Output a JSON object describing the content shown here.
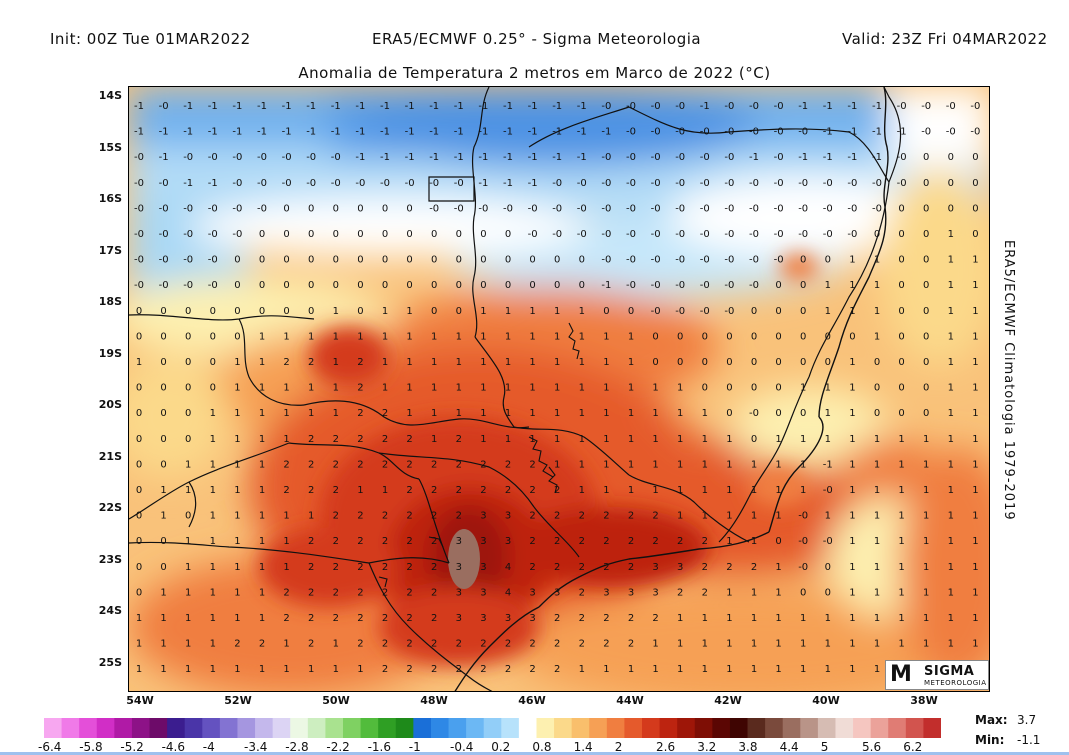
{
  "header": {
    "init": "Init: 00Z Tue 01MAR2022",
    "model": "ERA5/ECMWF 0.25° - Sigma Meteorologia",
    "valid": "Valid: 23Z Fri 04MAR2022"
  },
  "title": "Anomalia de Temperatura 2 metros em Marco de 2022 (°C)",
  "side_label": "ERA5/ECMWF Climatologia 1979-2019",
  "lat_ticks": [
    "14S",
    "15S",
    "16S",
    "17S",
    "18S",
    "19S",
    "20S",
    "21S",
    "22S",
    "23S",
    "24S",
    "25S"
  ],
  "lon_ticks": [
    "54W",
    "52W",
    "50W",
    "48W",
    "46W",
    "44W",
    "42W",
    "40W",
    "38W"
  ],
  "colorbar": {
    "labels": [
      "-6.4",
      "-5.8",
      "-5.2",
      "-4.6",
      "-4",
      "-3.4",
      "-2.8",
      "-2.2",
      "-1.6",
      "-1",
      "-0.4",
      "0.2",
      "0.8",
      "1.4",
      "2",
      "2.6",
      "3.2",
      "3.8",
      "4.4",
      "5",
      "5.6",
      "6.2"
    ],
    "colors": [
      "#f7a7f0",
      "#f07ae8",
      "#e44fd9",
      "#d12ec6",
      "#b01aa6",
      "#8d1287",
      "#6d0b69",
      "#3b1d8f",
      "#4a35a8",
      "#6452c0",
      "#8373d2",
      "#a596e0",
      "#c4b8ec",
      "#dcd4f4",
      "#ecf8e4",
      "#cdeec0",
      "#a9e28f",
      "#7fd162",
      "#52bc3c",
      "#2f9f24",
      "#1e8a1a",
      "#1a6fd8",
      "#2e88e6",
      "#4aa0ee",
      "#6cb8f4",
      "#92cef8",
      "#b7e2fb",
      "#ffffff",
      "#fdf0b0",
      "#fbd98a",
      "#f9bf6c",
      "#f6a055",
      "#f07e40",
      "#e55a2c",
      "#d43a1c",
      "#bd2410",
      "#9e1608",
      "#7e0e05",
      "#5b0603",
      "#3f0502",
      "#5a2a1e",
      "#7a4a3c",
      "#9a6e60",
      "#b99488",
      "#d6bcb3",
      "#f0dcd6",
      "#f5c6c0",
      "#eba29a",
      "#e07c74",
      "#d2544e",
      "#c22e2c"
    ]
  },
  "stats": {
    "max_label": "Max:",
    "max_value": "3.7",
    "min_label": "Min:",
    "min_value": "-1.1"
  },
  "logo": {
    "mark": "M",
    "name": "SIGMA",
    "sub": "METEOROLOGIA"
  },
  "cells": {
    "rows": [
      [
        "-1",
        "-0",
        "-1",
        "-1",
        "-1",
        "-1",
        "-1",
        "-1",
        "-1",
        "-1",
        "-1",
        "-1",
        "-1",
        "-1",
        "-1",
        "-1",
        "-1",
        "-1",
        "-1",
        "-0",
        "-0",
        "-0",
        "-0",
        "-1",
        "-0",
        "-0",
        "-0",
        "-1",
        "-1",
        "-1",
        "-1",
        "-0",
        "-0",
        "-0",
        "-0"
      ],
      [
        "-1",
        "-1",
        "-1",
        "-1",
        "-1",
        "-1",
        "-1",
        "-1",
        "-1",
        "-1",
        "-1",
        "-1",
        "-1",
        "-1",
        "-1",
        "-1",
        "-1",
        "-1",
        "-1",
        "-1",
        "-0",
        "-0",
        "-0",
        "-0",
        "-0",
        "-0",
        "-0",
        "-0",
        "-1",
        "-1",
        "-1",
        "-1",
        "-0",
        "-0",
        "-0"
      ],
      [
        "-0",
        "-1",
        "-0",
        "-0",
        "-0",
        "-0",
        "-0",
        "-0",
        "-0",
        "-1",
        "-1",
        "-1",
        "-1",
        "-1",
        "-1",
        "-1",
        "-1",
        "-1",
        "-1",
        "-0",
        "-0",
        "-0",
        "-0",
        "-0",
        "-0",
        "-1",
        "-0",
        "-1",
        "-1",
        "-1",
        "-1",
        "-0",
        "0",
        "0",
        "0"
      ],
      [
        "-0",
        "-0",
        "-1",
        "-1",
        "-0",
        "-0",
        "-0",
        "-0",
        "-0",
        "-0",
        "-0",
        "-0",
        "-0",
        "-0",
        "-1",
        "-1",
        "-1",
        "-0",
        "-0",
        "-0",
        "-0",
        "-0",
        "-0",
        "-0",
        "-0",
        "-0",
        "-0",
        "-0",
        "-0",
        "-0",
        "-0",
        "-0",
        "0",
        "0",
        "0"
      ],
      [
        "-0",
        "-0",
        "-0",
        "-0",
        "-0",
        "-0",
        "0",
        "0",
        "0",
        "0",
        "0",
        "0",
        "-0",
        "-0",
        "-0",
        "-0",
        "-0",
        "-0",
        "-0",
        "-0",
        "-0",
        "-0",
        "-0",
        "-0",
        "-0",
        "-0",
        "-0",
        "-0",
        "-0",
        "-0",
        "-0",
        "0",
        "0",
        "0",
        "0"
      ],
      [
        "-0",
        "-0",
        "-0",
        "-0",
        "-0",
        "0",
        "0",
        "0",
        "0",
        "0",
        "0",
        "0",
        "0",
        "0",
        "0",
        "0",
        "-0",
        "-0",
        "-0",
        "-0",
        "-0",
        "-0",
        "-0",
        "-0",
        "-0",
        "-0",
        "-0",
        "-0",
        "-0",
        "-0",
        "0",
        "0",
        "0",
        "1",
        "0"
      ],
      [
        "-0",
        "-0",
        "-0",
        "-0",
        "0",
        "0",
        "0",
        "0",
        "0",
        "0",
        "0",
        "0",
        "0",
        "0",
        "0",
        "0",
        "0",
        "0",
        "0",
        "-0",
        "-0",
        "-0",
        "-0",
        "-0",
        "-0",
        "-0",
        "-0",
        "0",
        "0",
        "1",
        "1",
        "0",
        "0",
        "1",
        "1"
      ],
      [
        "-0",
        "-0",
        "-0",
        "-0",
        "0",
        "0",
        "0",
        "0",
        "0",
        "0",
        "0",
        "0",
        "0",
        "0",
        "0",
        "0",
        "0",
        "0",
        "0",
        "-1",
        "-0",
        "-0",
        "-0",
        "-0",
        "-0",
        "-0",
        "0",
        "0",
        "1",
        "1",
        "1",
        "0",
        "0",
        "1",
        "1"
      ],
      [
        "0",
        "0",
        "0",
        "0",
        "0",
        "0",
        "0",
        "0",
        "1",
        "0",
        "1",
        "1",
        "0",
        "0",
        "1",
        "1",
        "1",
        "1",
        "1",
        "0",
        "0",
        "-0",
        "-0",
        "-0",
        "-0",
        "0",
        "0",
        "0",
        "1",
        "1",
        "1",
        "0",
        "0",
        "1",
        "1"
      ],
      [
        "0",
        "0",
        "0",
        "0",
        "0",
        "1",
        "1",
        "1",
        "1",
        "1",
        "1",
        "1",
        "1",
        "1",
        "1",
        "1",
        "1",
        "1",
        "1",
        "1",
        "1",
        "0",
        "0",
        "0",
        "0",
        "0",
        "0",
        "0",
        "0",
        "0",
        "1",
        "0",
        "0",
        "1",
        "1"
      ],
      [
        "1",
        "0",
        "0",
        "0",
        "1",
        "1",
        "2",
        "2",
        "1",
        "2",
        "1",
        "1",
        "1",
        "1",
        "1",
        "1",
        "1",
        "1",
        "1",
        "1",
        "1",
        "0",
        "0",
        "0",
        "0",
        "0",
        "0",
        "0",
        "0",
        "1",
        "0",
        "0",
        "0",
        "1",
        "1"
      ],
      [
        "0",
        "0",
        "0",
        "0",
        "1",
        "1",
        "1",
        "1",
        "1",
        "2",
        "1",
        "1",
        "1",
        "1",
        "1",
        "1",
        "1",
        "1",
        "1",
        "1",
        "1",
        "1",
        "1",
        "0",
        "0",
        "0",
        "0",
        "1",
        "1",
        "1",
        "0",
        "0",
        "0",
        "1",
        "1"
      ],
      [
        "0",
        "0",
        "0",
        "1",
        "1",
        "1",
        "1",
        "1",
        "1",
        "2",
        "2",
        "1",
        "1",
        "1",
        "1",
        "1",
        "1",
        "1",
        "1",
        "1",
        "1",
        "1",
        "1",
        "1",
        "0",
        "-0",
        "0",
        "0",
        "1",
        "1",
        "0",
        "0",
        "0",
        "1",
        "1"
      ],
      [
        "0",
        "0",
        "0",
        "1",
        "1",
        "1",
        "1",
        "2",
        "2",
        "2",
        "2",
        "2",
        "1",
        "2",
        "1",
        "1",
        "1",
        "1",
        "1",
        "1",
        "1",
        "1",
        "1",
        "1",
        "1",
        "0",
        "1",
        "1",
        "1",
        "1",
        "1",
        "1",
        "1",
        "1",
        "1"
      ],
      [
        "0",
        "0",
        "1",
        "1",
        "1",
        "1",
        "2",
        "2",
        "2",
        "2",
        "2",
        "2",
        "2",
        "2",
        "2",
        "2",
        "2",
        "1",
        "1",
        "1",
        "1",
        "1",
        "1",
        "1",
        "1",
        "1",
        "1",
        "1",
        "-1",
        "1",
        "1",
        "1",
        "1",
        "1",
        "1"
      ],
      [
        "0",
        "1",
        "1",
        "1",
        "1",
        "1",
        "2",
        "2",
        "2",
        "1",
        "1",
        "2",
        "2",
        "2",
        "2",
        "2",
        "2",
        "2",
        "1",
        "1",
        "1",
        "1",
        "1",
        "1",
        "1",
        "1",
        "1",
        "1",
        "-0",
        "1",
        "1",
        "1",
        "1",
        "1",
        "1"
      ],
      [
        "0",
        "1",
        "0",
        "1",
        "1",
        "1",
        "1",
        "1",
        "2",
        "2",
        "2",
        "2",
        "2",
        "2",
        "3",
        "3",
        "2",
        "2",
        "2",
        "2",
        "2",
        "2",
        "1",
        "1",
        "1",
        "1",
        "1",
        "-0",
        "1",
        "1",
        "1",
        "1",
        "1",
        "1",
        "1"
      ],
      [
        "0",
        "0",
        "1",
        "1",
        "1",
        "1",
        "1",
        "2",
        "2",
        "2",
        "2",
        "2",
        "2",
        "3",
        "3",
        "3",
        "2",
        "2",
        "2",
        "2",
        "2",
        "2",
        "2",
        "2",
        "1",
        "1",
        "0",
        "-0",
        "-0",
        "1",
        "1",
        "1",
        "1",
        "1",
        "1"
      ],
      [
        "0",
        "0",
        "1",
        "1",
        "1",
        "1",
        "1",
        "2",
        "2",
        "2",
        "2",
        "2",
        "2",
        "3",
        "3",
        "4",
        "2",
        "2",
        "2",
        "2",
        "2",
        "3",
        "3",
        "2",
        "2",
        "2",
        "1",
        "-0",
        "0",
        "1",
        "1",
        "1",
        "1",
        "1",
        "1"
      ],
      [
        "0",
        "1",
        "1",
        "1",
        "1",
        "1",
        "2",
        "2",
        "2",
        "2",
        "2",
        "2",
        "2",
        "3",
        "3",
        "4",
        "3",
        "3",
        "2",
        "3",
        "3",
        "3",
        "2",
        "2",
        "1",
        "1",
        "1",
        "0",
        "0",
        "1",
        "1",
        "1",
        "1",
        "1",
        "1"
      ],
      [
        "1",
        "1",
        "1",
        "1",
        "1",
        "1",
        "2",
        "2",
        "2",
        "2",
        "2",
        "2",
        "2",
        "3",
        "3",
        "3",
        "3",
        "2",
        "2",
        "2",
        "2",
        "2",
        "1",
        "1",
        "1",
        "1",
        "1",
        "1",
        "1",
        "1",
        "1",
        "1",
        "1",
        "1",
        "1"
      ],
      [
        "1",
        "1",
        "1",
        "1",
        "2",
        "2",
        "1",
        "2",
        "1",
        "2",
        "2",
        "2",
        "2",
        "2",
        "2",
        "2",
        "2",
        "2",
        "2",
        "2",
        "2",
        "1",
        "1",
        "1",
        "1",
        "1",
        "1",
        "1",
        "1",
        "1",
        "1",
        "1",
        "1",
        "1",
        "1"
      ],
      [
        "1",
        "1",
        "1",
        "1",
        "1",
        "1",
        "1",
        "1",
        "1",
        "1",
        "2",
        "2",
        "2",
        "2",
        "2",
        "2",
        "2",
        "2",
        "1",
        "1",
        "1",
        "1",
        "1",
        "1",
        "1",
        "1",
        "1",
        "1",
        "1",
        "1",
        "1",
        "1",
        "1",
        "1",
        "1"
      ],
      [
        "1",
        "1",
        "1",
        "1",
        "1",
        "1",
        "1",
        "1",
        "1",
        "1",
        "1",
        "2",
        "2",
        "2",
        "2",
        "2",
        "2",
        "2",
        "1",
        "1",
        "1",
        "1",
        "1",
        "1",
        "1",
        "1",
        "1",
        "1",
        "1",
        "1",
        "1",
        "1",
        "1",
        "1",
        "1"
      ]
    ]
  }
}
